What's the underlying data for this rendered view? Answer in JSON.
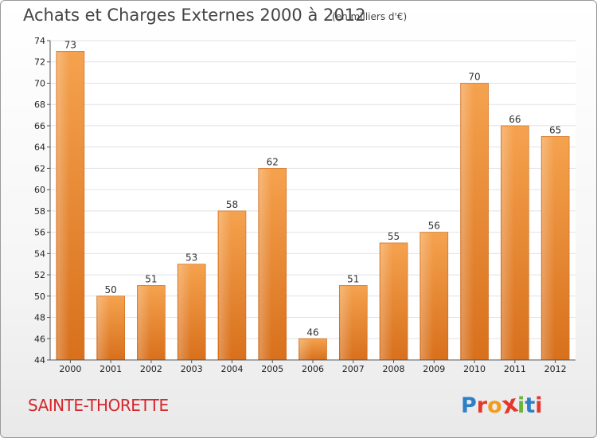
{
  "chart_data": {
    "type": "bar",
    "title": "Achats et Charges Externes 2000 à 2012",
    "unit_label": "(en milliers d'€)",
    "categories": [
      "2000",
      "2001",
      "2002",
      "2003",
      "2004",
      "2005",
      "2006",
      "2007",
      "2008",
      "2009",
      "2010",
      "2011",
      "2012"
    ],
    "values": [
      73,
      50,
      51,
      53,
      58,
      62,
      46,
      51,
      55,
      56,
      70,
      66,
      65
    ],
    "ylim": [
      44,
      74
    ],
    "yticks": [
      44,
      46,
      48,
      50,
      52,
      54,
      56,
      58,
      60,
      62,
      64,
      66,
      68,
      70,
      72,
      74
    ],
    "grid": true,
    "xlabel": "",
    "ylabel": "",
    "bar_color": "#f0943a"
  },
  "footer": {
    "location": "SAINTE-THORETTE",
    "logo_letters": [
      "P",
      "r",
      "o",
      "x",
      "i",
      "t",
      "i"
    ],
    "logo_colors": [
      "#2e7fc6",
      "#e5372c",
      "#f39c1a",
      "#e5372c",
      "#6cb33e",
      "#2e7fc6",
      "#e5372c"
    ]
  }
}
